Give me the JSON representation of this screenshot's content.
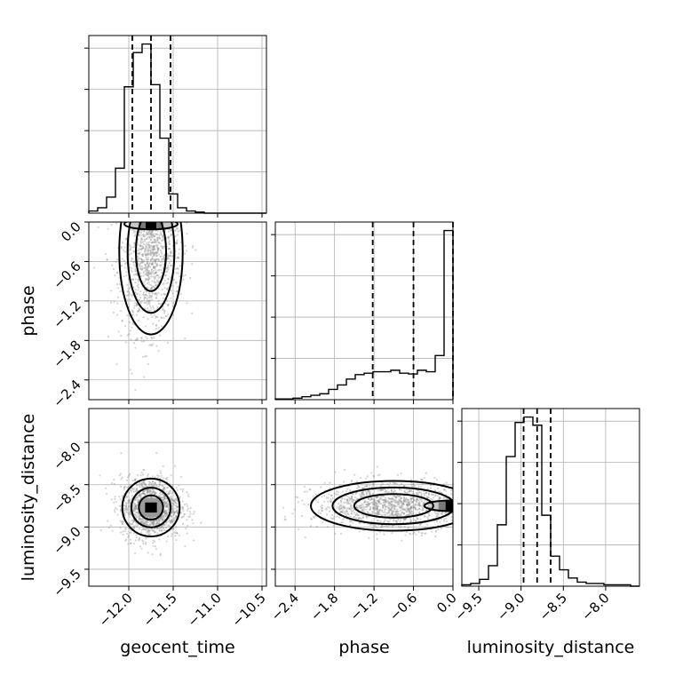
{
  "chart_data": {
    "type": "corner",
    "parameters": [
      "geocent_time",
      "phase",
      "luminosity_distance"
    ],
    "axis_labels": {
      "geocent_time": "geocent_time",
      "phase": "phase",
      "luminosity_distance": "luminosity_distance"
    },
    "ranges": {
      "geocent_time": [
        -12.45,
        -10.45
      ],
      "phase": [
        -2.7,
        0.0
      ],
      "luminosity_distance": [
        -9.7,
        -7.6
      ]
    },
    "ticks": {
      "geocent_time": {
        "values": [
          -12.0,
          -11.5,
          -11.0,
          -10.5
        ],
        "labels": [
          "−12.0",
          "−11.5",
          "−11.0",
          "−10.5"
        ]
      },
      "phase": {
        "values": [
          -2.4,
          -1.8,
          -1.2,
          -0.6,
          0.0
        ],
        "labels": [
          "−2.4",
          "−1.8",
          "−1.2",
          "−0.6",
          "0.0"
        ]
      },
      "luminosity_distance": {
        "values": [
          -9.5,
          -9.0,
          -8.5,
          -8.0
        ],
        "labels": [
          "−9.5",
          "−9.0",
          "−8.5",
          "−8.0"
        ]
      }
    },
    "grid": true,
    "marginals": {
      "geocent_time": {
        "bin_edges": [
          -12.45,
          -12.35,
          -12.25,
          -12.15,
          -12.05,
          -11.95,
          -11.85,
          -11.75,
          -11.65,
          -11.55,
          -11.45,
          -11.35,
          -11.25,
          -11.15,
          -11.05,
          -10.95,
          -10.85,
          -10.75,
          -10.65,
          -10.55,
          -10.45
        ],
        "counts": [
          2,
          5,
          15,
          42,
          118,
          150,
          158,
          120,
          70,
          18,
          5,
          2,
          1,
          0,
          0,
          0,
          0,
          0,
          0,
          0
        ],
        "quantiles": [
          -11.96,
          -11.75,
          -11.53
        ]
      },
      "phase": {
        "bin_edges": [
          -2.7,
          -2.565,
          -2.43,
          -2.295,
          -2.16,
          -2.025,
          -1.89,
          -1.755,
          -1.62,
          -1.485,
          -1.35,
          -1.215,
          -1.08,
          -0.945,
          -0.81,
          -0.675,
          -0.54,
          -0.405,
          -0.27,
          -0.135,
          0.0
        ],
        "counts": [
          1,
          1,
          2,
          4,
          6,
          8,
          14,
          20,
          28,
          34,
          36,
          38,
          38,
          40,
          36,
          35,
          40,
          38,
          60,
          230
        ],
        "quantiles": [
          -1.22,
          -0.6,
          0.0
        ]
      },
      "luminosity_distance": {
        "bin_edges": [
          -9.7,
          -9.595,
          -9.49,
          -9.385,
          -9.28,
          -9.175,
          -9.07,
          -8.965,
          -8.86,
          -8.755,
          -8.65,
          -8.545,
          -8.44,
          -8.335,
          -8.23,
          -8.125,
          -8.02,
          -7.915,
          -7.81,
          -7.705,
          -7.6
        ],
        "counts": [
          1,
          2,
          5,
          15,
          45,
          95,
          120,
          124,
          118,
          52,
          22,
          12,
          6,
          3,
          2,
          2,
          1,
          1,
          1,
          0
        ],
        "quantiles": [
          -8.97,
          -8.81,
          -8.65
        ]
      }
    },
    "joints": [
      {
        "x": "geocent_time",
        "y": "phase",
        "center": [
          -11.75,
          -0.45
        ],
        "spread": [
          0.17,
          0.6
        ],
        "corr": 0.15,
        "dense_peak": [
          -11.75,
          -0.03
        ]
      },
      {
        "x": "geocent_time",
        "y": "luminosity_distance",
        "center": [
          -11.75,
          -8.77
        ],
        "spread": [
          0.17,
          0.18
        ],
        "corr": 0.0
      },
      {
        "x": "phase",
        "y": "luminosity_distance",
        "center": [
          -0.9,
          -8.75
        ],
        "spread": [
          0.6,
          0.14
        ],
        "corr": 0.0,
        "dense_peak": [
          -0.03,
          -8.75
        ]
      }
    ]
  }
}
